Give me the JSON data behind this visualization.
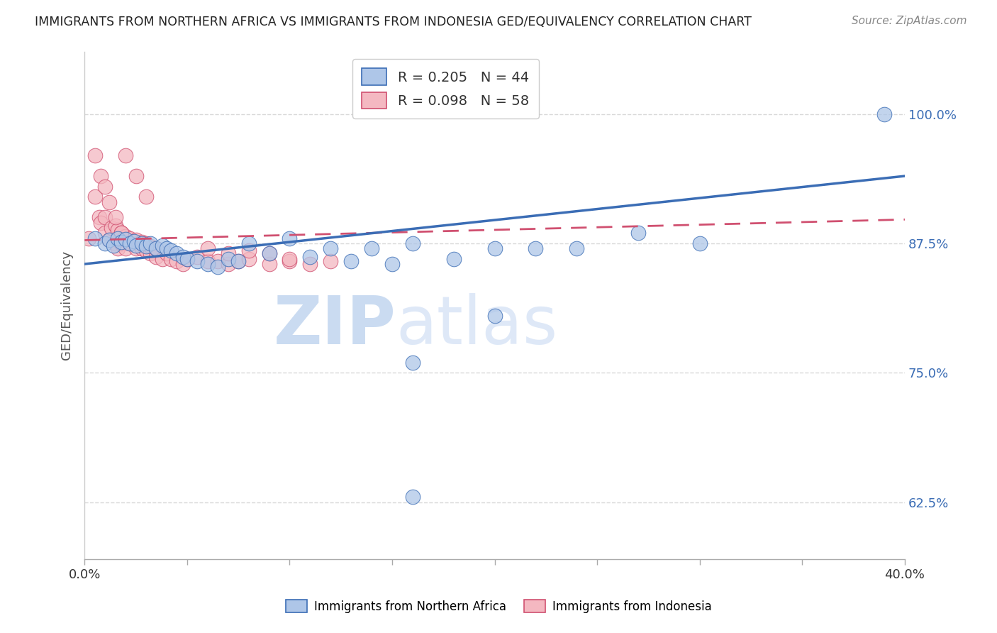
{
  "title": "IMMIGRANTS FROM NORTHERN AFRICA VS IMMIGRANTS FROM INDONESIA GED/EQUIVALENCY CORRELATION CHART",
  "source": "Source: ZipAtlas.com",
  "ylabel": "GED/Equivalency",
  "yticks": [
    "62.5%",
    "75.0%",
    "87.5%",
    "100.0%"
  ],
  "ytick_vals": [
    0.625,
    0.75,
    0.875,
    1.0
  ],
  "xlim": [
    0.0,
    0.4
  ],
  "ylim": [
    0.57,
    1.06
  ],
  "legend1_label": "R = 0.205   N = 44",
  "legend2_label": "R = 0.098   N = 58",
  "legend1_face": "#aec6e8",
  "legend2_face": "#f4b8c1",
  "line1_color": "#3b6db5",
  "line2_color": "#d05070",
  "watermark": "ZIPatlas",
  "blue_x": [
    0.005,
    0.01,
    0.012,
    0.014,
    0.016,
    0.018,
    0.02,
    0.022,
    0.024,
    0.025,
    0.028,
    0.03,
    0.032,
    0.035,
    0.038,
    0.04,
    0.042,
    0.045,
    0.048,
    0.05,
    0.055,
    0.06,
    0.065,
    0.07,
    0.075,
    0.08,
    0.09,
    0.1,
    0.11,
    0.12,
    0.13,
    0.14,
    0.15,
    0.16,
    0.18,
    0.2,
    0.22,
    0.24,
    0.27,
    0.3,
    0.16,
    0.2,
    0.39,
    0.16
  ],
  "blue_y": [
    0.88,
    0.875,
    0.878,
    0.873,
    0.88,
    0.876,
    0.879,
    0.875,
    0.877,
    0.873,
    0.875,
    0.872,
    0.875,
    0.87,
    0.873,
    0.87,
    0.868,
    0.865,
    0.862,
    0.86,
    0.858,
    0.855,
    0.852,
    0.86,
    0.858,
    0.875,
    0.865,
    0.88,
    0.862,
    0.87,
    0.858,
    0.87,
    0.855,
    0.875,
    0.86,
    0.87,
    0.87,
    0.87,
    0.885,
    0.875,
    0.76,
    0.805,
    1.0,
    0.63
  ],
  "pink_x": [
    0.002,
    0.005,
    0.007,
    0.008,
    0.01,
    0.01,
    0.012,
    0.013,
    0.015,
    0.015,
    0.016,
    0.016,
    0.018,
    0.018,
    0.02,
    0.02,
    0.022,
    0.022,
    0.025,
    0.025,
    0.028,
    0.028,
    0.03,
    0.03,
    0.032,
    0.032,
    0.035,
    0.035,
    0.038,
    0.04,
    0.042,
    0.045,
    0.048,
    0.05,
    0.055,
    0.06,
    0.065,
    0.07,
    0.075,
    0.08,
    0.09,
    0.1,
    0.11,
    0.12,
    0.06,
    0.07,
    0.08,
    0.09,
    0.1,
    0.005,
    0.008,
    0.01,
    0.012,
    0.015,
    0.018,
    0.02,
    0.025,
    0.03
  ],
  "pink_y": [
    0.88,
    0.92,
    0.9,
    0.895,
    0.885,
    0.9,
    0.878,
    0.89,
    0.875,
    0.892,
    0.87,
    0.888,
    0.875,
    0.885,
    0.87,
    0.882,
    0.875,
    0.88,
    0.87,
    0.878,
    0.87,
    0.876,
    0.868,
    0.875,
    0.865,
    0.872,
    0.862,
    0.87,
    0.86,
    0.865,
    0.86,
    0.858,
    0.855,
    0.86,
    0.862,
    0.858,
    0.858,
    0.855,
    0.858,
    0.86,
    0.855,
    0.858,
    0.855,
    0.858,
    0.87,
    0.865,
    0.868,
    0.865,
    0.86,
    0.96,
    0.94,
    0.93,
    0.915,
    0.9,
    0.885,
    0.96,
    0.94,
    0.92
  ],
  "blue_line_x0": 0.0,
  "blue_line_x1": 0.4,
  "blue_line_y0": 0.855,
  "blue_line_y1": 0.94,
  "pink_line_x0": 0.0,
  "pink_line_x1": 0.4,
  "pink_line_y0": 0.878,
  "pink_line_y1": 0.898,
  "background_color": "#ffffff",
  "grid_color": "#d8d8d8"
}
